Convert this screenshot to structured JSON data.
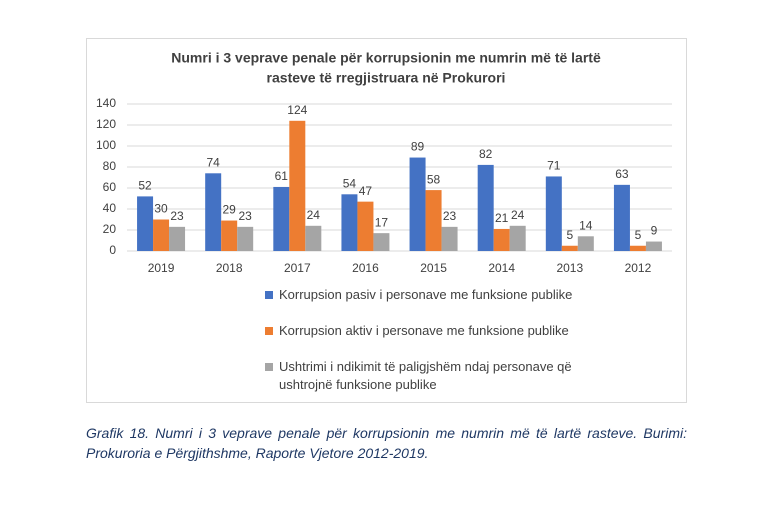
{
  "chart_data": {
    "type": "bar",
    "title": [
      "Numri i 3 veprave penale për korrupsionin me numrin më të lartë",
      "rasteve të rregjistruara në Prokurori"
    ],
    "categories": [
      "2019",
      "2018",
      "2017",
      "2016",
      "2015",
      "2014",
      "2013",
      "2012"
    ],
    "series": [
      {
        "name": "Korrupsion pasiv i personave me funksione publike",
        "color": "#4472c4",
        "values": [
          52,
          74,
          61,
          54,
          89,
          82,
          71,
          63
        ]
      },
      {
        "name": "Korrupsion aktiv i personave me funksione publike",
        "color": "#ed7d31",
        "values": [
          30,
          29,
          124,
          47,
          58,
          21,
          5,
          5
        ]
      },
      {
        "name": "Ushtrimi i ndikimit të paligjshëm ndaj personave që ushtrojnë funksione publike",
        "color": "#a5a5a5",
        "values": [
          23,
          23,
          24,
          17,
          23,
          24,
          14,
          9
        ]
      }
    ],
    "ylim": [
      0,
      140
    ],
    "yticks": [
      0,
      20,
      40,
      60,
      80,
      100,
      120,
      140
    ],
    "grid": true,
    "legend": "bottom"
  },
  "caption": "Grafik 18. Numri i 3 veprave penale për korrupsionin me numrin më të lartë rasteve. Burimi: Prokuroria e Përgjithshme, Raporte Vjetore 2012-2019."
}
